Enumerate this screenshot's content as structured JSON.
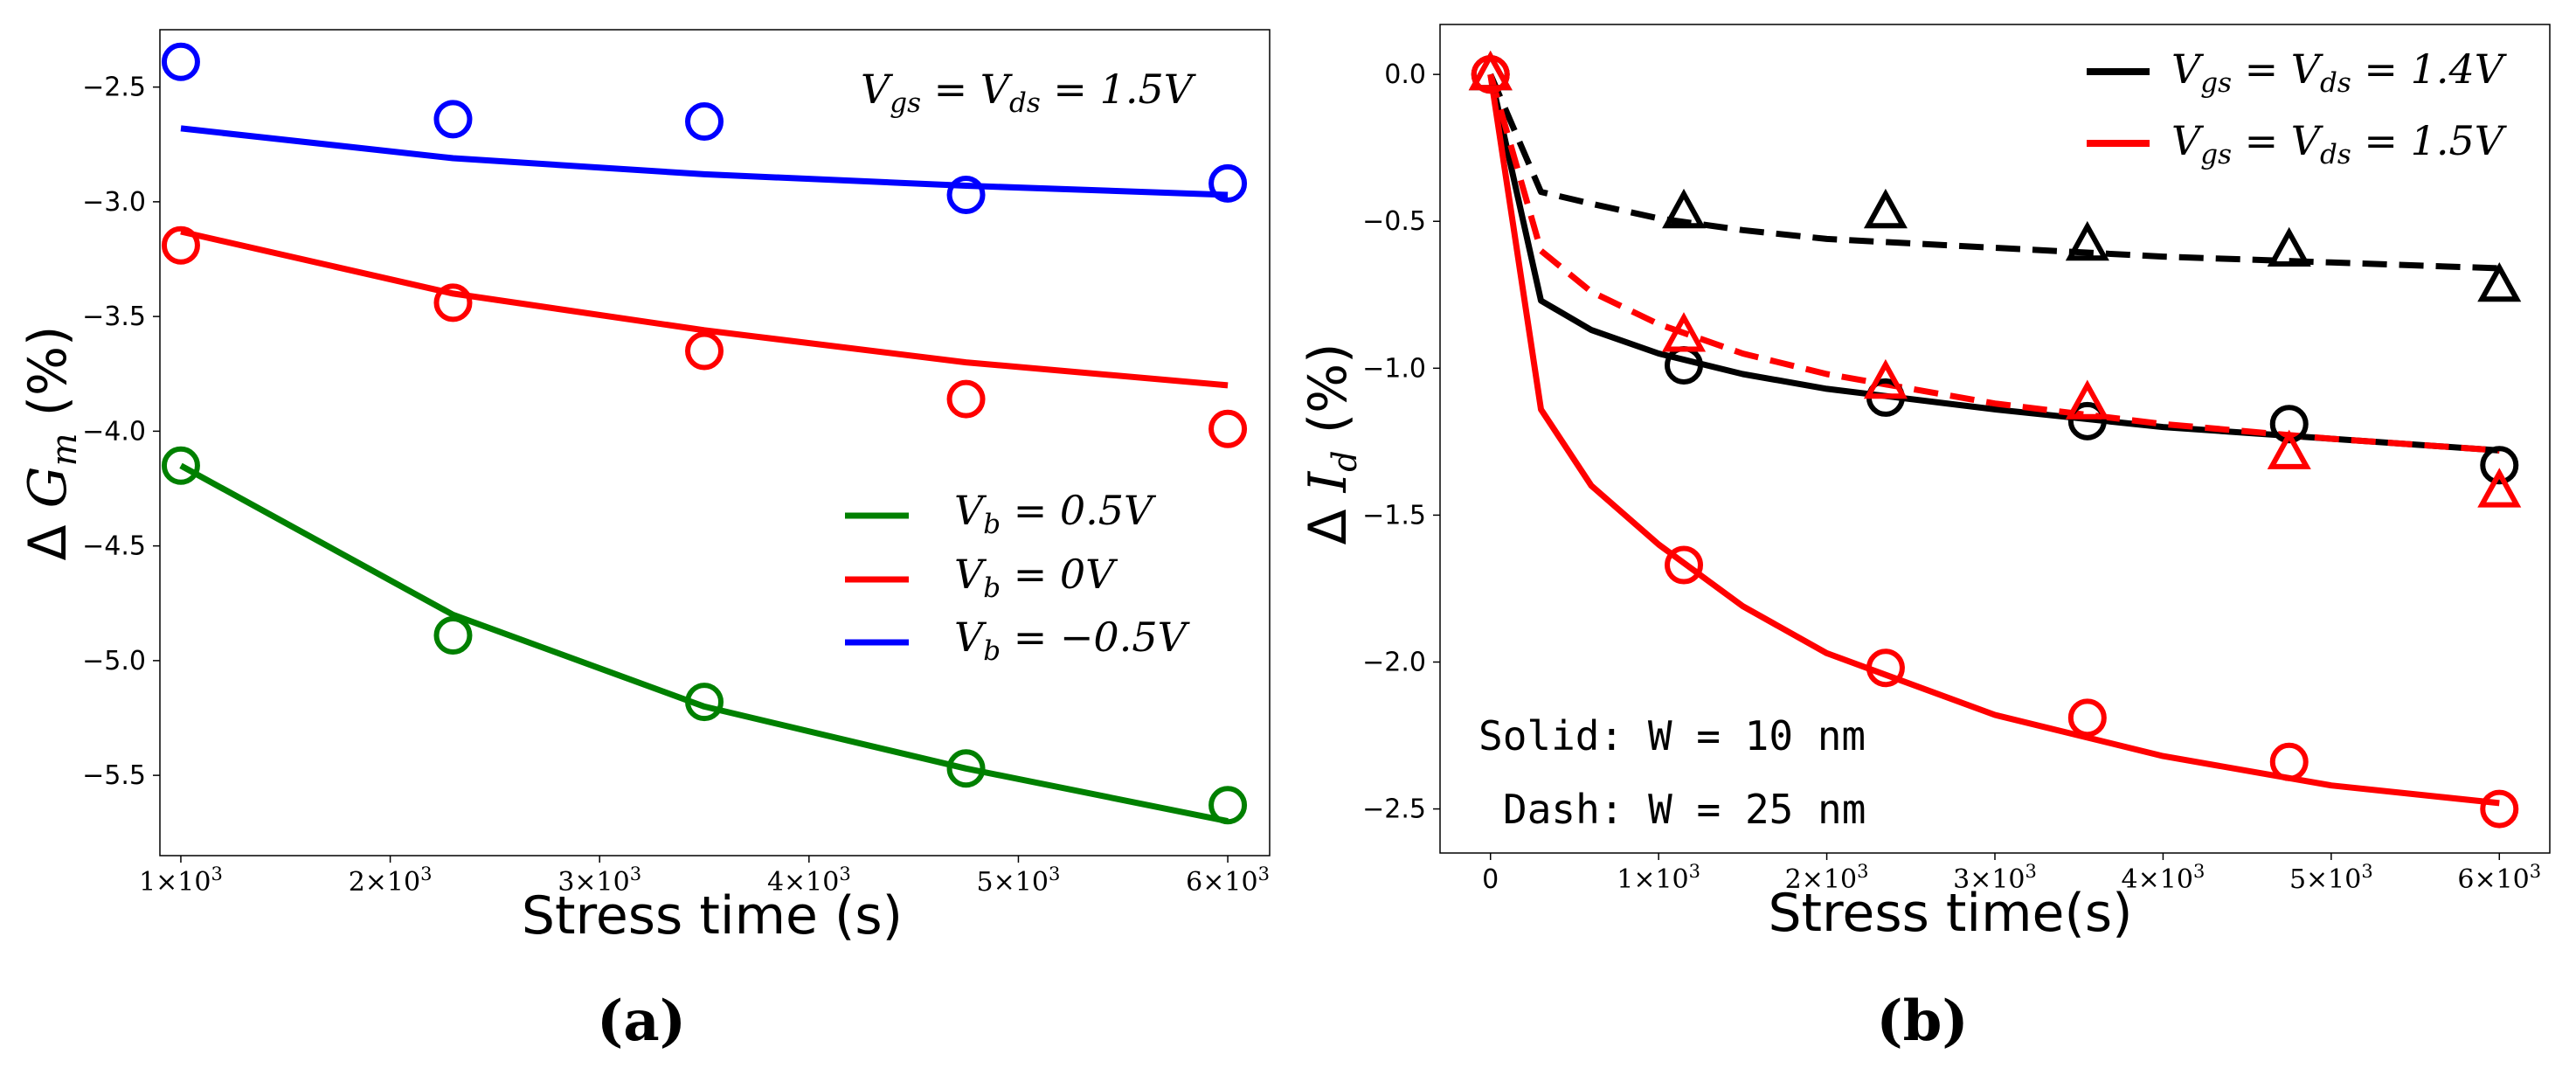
{
  "chart_data": [
    {
      "type": "line",
      "panel_label": "(a)",
      "title": "",
      "xlabel": "Stress time (s)",
      "ylabel": "Δ G_m (%)",
      "ylabel_parts": {
        "prefix": "Δ ",
        "var": "G",
        "sub": "m",
        "suffix": " (%)"
      },
      "xlim": [
        900,
        6200
      ],
      "ylim": [
        -5.85,
        -2.25
      ],
      "xticks": [
        {
          "value": 1000,
          "mantissa": "1",
          "exp": "3"
        },
        {
          "value": 2000,
          "mantissa": "2",
          "exp": "3"
        },
        {
          "value": 3000,
          "mantissa": "3",
          "exp": "3"
        },
        {
          "value": 4000,
          "mantissa": "4",
          "exp": "3"
        },
        {
          "value": 5000,
          "mantissa": "5",
          "exp": "3"
        },
        {
          "value": 6000,
          "mantissa": "6",
          "exp": "3"
        }
      ],
      "yticks": [
        {
          "value": -2.5,
          "label": "−2.5"
        },
        {
          "value": -3.0,
          "label": "−3.0"
        },
        {
          "value": -3.5,
          "label": "−3.5"
        },
        {
          "value": -4.0,
          "label": "−4.0"
        },
        {
          "value": -4.5,
          "label": "−4.5"
        },
        {
          "value": -5.0,
          "label": "−5.0"
        },
        {
          "value": -5.5,
          "label": "−5.5"
        }
      ],
      "annotation": "V_gs = V_ds = 1.5V",
      "annotation_parts": {
        "v1": "V",
        "s1": "gs",
        "eq": " = ",
        "v2": "V",
        "s2": "ds",
        "rest": " = 1.5V"
      },
      "legend": [
        {
          "name": "V_b = 0.5V",
          "var": "V",
          "sub": "b",
          "rest": " = 0.5V",
          "color": "#008000"
        },
        {
          "name": "V_b = 0V",
          "var": "V",
          "sub": "b",
          "rest": " = 0V",
          "color": "#ff0000"
        },
        {
          "name": "V_b = −0.5V",
          "var": "V",
          "sub": "b",
          "rest": " = −0.5V",
          "color": "#0000ff"
        }
      ],
      "series": [
        {
          "name": "V_b = -0.5V (fit)",
          "color": "#0000ff",
          "style": "solid",
          "x": [
            1000,
            2300,
            3500,
            4750,
            6000
          ],
          "y": [
            -2.68,
            -2.81,
            -2.88,
            -2.93,
            -2.97
          ]
        },
        {
          "name": "V_b = -0.5V (data)",
          "color": "#0000ff",
          "marker": "circle",
          "x": [
            1000,
            2300,
            3500,
            4750,
            6000
          ],
          "y": [
            -2.39,
            -2.64,
            -2.65,
            -2.97,
            -2.92
          ]
        },
        {
          "name": "V_b = 0V (fit)",
          "color": "#ff0000",
          "style": "solid",
          "x": [
            1000,
            2300,
            3500,
            4750,
            6000
          ],
          "y": [
            -3.13,
            -3.4,
            -3.56,
            -3.7,
            -3.8
          ]
        },
        {
          "name": "V_b = 0V (data)",
          "color": "#ff0000",
          "marker": "circle",
          "x": [
            1000,
            2300,
            3500,
            4750,
            6000
          ],
          "y": [
            -3.19,
            -3.44,
            -3.65,
            -3.86,
            -3.99
          ]
        },
        {
          "name": "V_b = 0.5V (fit)",
          "color": "#008000",
          "style": "solid",
          "x": [
            1000,
            2300,
            3500,
            4750,
            6000
          ],
          "y": [
            -4.15,
            -4.8,
            -5.2,
            -5.47,
            -5.7
          ]
        },
        {
          "name": "V_b = 0.5V (data)",
          "color": "#008000",
          "marker": "circle",
          "x": [
            1000,
            2300,
            3500,
            4750,
            6000
          ],
          "y": [
            -4.15,
            -4.89,
            -5.18,
            -5.47,
            -5.63
          ]
        }
      ]
    },
    {
      "type": "line",
      "panel_label": "(b)",
      "title": "",
      "xlabel": "Stress time(s)",
      "ylabel": "Δ I_d (%)",
      "ylabel_parts": {
        "prefix": "Δ ",
        "var": "I",
        "sub": "d",
        "suffix": " (%)"
      },
      "xlim": [
        -300,
        6300
      ],
      "ylim": [
        -2.65,
        0.17
      ],
      "xticks": [
        {
          "value": 0,
          "plain": "0"
        },
        {
          "value": 1000,
          "mantissa": "1",
          "exp": "3"
        },
        {
          "value": 2000,
          "mantissa": "2",
          "exp": "3"
        },
        {
          "value": 3000,
          "mantissa": "3",
          "exp": "3"
        },
        {
          "value": 4000,
          "mantissa": "4",
          "exp": "3"
        },
        {
          "value": 5000,
          "mantissa": "5",
          "exp": "3"
        },
        {
          "value": 6000,
          "mantissa": "6",
          "exp": "3"
        }
      ],
      "yticks": [
        {
          "value": 0.0,
          "label": "0.0"
        },
        {
          "value": -0.5,
          "label": "−0.5"
        },
        {
          "value": -1.0,
          "label": "−1.0"
        },
        {
          "value": -1.5,
          "label": "−1.5"
        },
        {
          "value": -2.0,
          "label": "−2.0"
        },
        {
          "value": -2.5,
          "label": "−2.5"
        }
      ],
      "notes": [
        "Solid: W = 10 nm",
        "Dash: W = 25 nm"
      ],
      "legend": [
        {
          "name": "V_gs = V_ds = 1.4V",
          "v1": "V",
          "s1": "gs",
          "eq": " = ",
          "v2": "V",
          "s2": "ds",
          "rest": " = 1.4V",
          "color": "#000000"
        },
        {
          "name": "V_gs = V_ds = 1.5V",
          "v1": "V",
          "s1": "gs",
          "eq": " = ",
          "v2": "V",
          "s2": "ds",
          "rest": " = 1.5V",
          "color": "#ff0000"
        }
      ],
      "series": [
        {
          "name": "1.4V, W = 10 nm (fit)",
          "color": "#000000",
          "style": "solid",
          "x": [
            0,
            300,
            600,
            1000,
            1500,
            2000,
            3000,
            4000,
            5000,
            6000
          ],
          "y": [
            0,
            -0.77,
            -0.87,
            -0.95,
            -1.02,
            -1.07,
            -1.14,
            -1.2,
            -1.24,
            -1.28
          ]
        },
        {
          "name": "1.4V, W = 10 nm (data)",
          "color": "#000000",
          "marker": "circle",
          "x": [
            0,
            1150,
            2350,
            3550,
            4750,
            6000
          ],
          "y": [
            0,
            -0.99,
            -1.1,
            -1.18,
            -1.19,
            -1.33
          ]
        },
        {
          "name": "1.4V, W = 25 nm (fit)",
          "color": "#000000",
          "style": "dashed",
          "x": [
            0,
            300,
            600,
            1000,
            1500,
            2000,
            3000,
            4000,
            5000,
            6000
          ],
          "y": [
            0,
            -0.4,
            -0.44,
            -0.49,
            -0.53,
            -0.56,
            -0.59,
            -0.62,
            -0.64,
            -0.66
          ]
        },
        {
          "name": "1.4V, W = 25 nm (data)",
          "color": "#000000",
          "marker": "triangle",
          "x": [
            0,
            1150,
            2350,
            3550,
            4750,
            6000
          ],
          "y": [
            0,
            -0.47,
            -0.47,
            -0.58,
            -0.6,
            -0.72
          ]
        },
        {
          "name": "1.5V, W = 10 nm (fit)",
          "color": "#ff0000",
          "style": "solid",
          "x": [
            0,
            300,
            600,
            1000,
            1500,
            2000,
            3000,
            4000,
            5000,
            6000
          ],
          "y": [
            0,
            -1.14,
            -1.4,
            -1.6,
            -1.81,
            -1.97,
            -2.18,
            -2.32,
            -2.42,
            -2.48
          ]
        },
        {
          "name": "1.5V, W = 10 nm (data)",
          "color": "#ff0000",
          "marker": "circle",
          "x": [
            0,
            1150,
            2350,
            3550,
            4750,
            6000
          ],
          "y": [
            0,
            -1.67,
            -2.02,
            -2.19,
            -2.34,
            -2.5
          ]
        },
        {
          "name": "1.5V, W = 25 nm (fit)",
          "color": "#ff0000",
          "style": "dashed",
          "x": [
            0,
            300,
            600,
            1000,
            1500,
            2000,
            3000,
            4000,
            5000,
            6000
          ],
          "y": [
            0,
            -0.6,
            -0.74,
            -0.85,
            -0.95,
            -1.02,
            -1.12,
            -1.19,
            -1.24,
            -1.28
          ]
        },
        {
          "name": "1.5V, W = 25 nm (data)",
          "color": "#ff0000",
          "marker": "triangle",
          "x": [
            0,
            1150,
            2350,
            3550,
            4750,
            6000
          ],
          "y": [
            0,
            -0.89,
            -1.05,
            -1.12,
            -1.29,
            -1.42
          ]
        }
      ]
    }
  ]
}
